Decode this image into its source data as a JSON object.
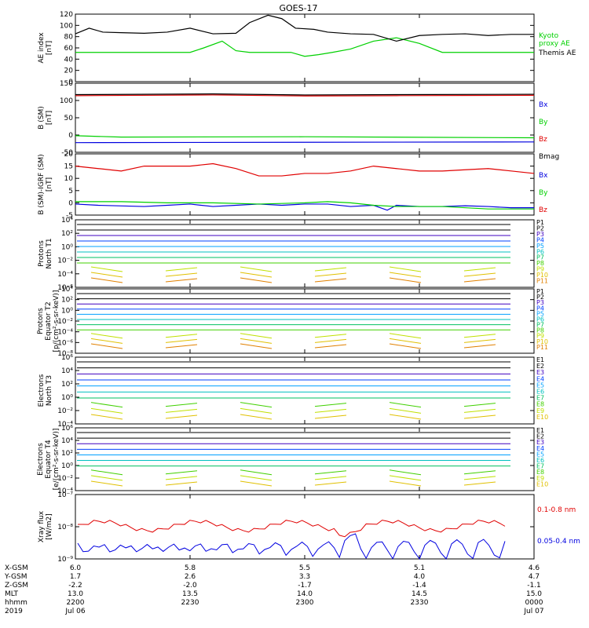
{
  "title": "GOES-17",
  "colors": {
    "black": "#000000",
    "red": "#e00000",
    "green": "#00d000",
    "blue": "#0000e0",
    "p_lines": [
      "#000000",
      "#000000",
      "#4000c0",
      "#0040ff",
      "#00a0ff",
      "#00c0c0",
      "#00c060",
      "#40d000",
      "#c0e000",
      "#e0c000",
      "#e08000",
      "#e00000"
    ]
  },
  "chart_data": [
    {
      "type": "line",
      "ylabel": "AE index\n[nT]",
      "yticks": [
        "0",
        "20",
        "40",
        "60",
        "80",
        "100",
        "120"
      ],
      "ylim": [
        0,
        120
      ],
      "series": [
        {
          "name": "Kyoto\nproxy AE",
          "color": "green",
          "x": [
            0,
            0.05,
            0.1,
            0.15,
            0.2,
            0.25,
            0.28,
            0.32,
            0.35,
            0.38,
            0.42,
            0.47,
            0.5,
            0.53,
            0.56,
            0.6,
            0.65,
            0.7,
            0.75,
            0.8,
            0.85,
            0.9,
            0.95,
            1.0
          ],
          "values": [
            52,
            52,
            52,
            52,
            52,
            52,
            60,
            72,
            55,
            52,
            52,
            52,
            45,
            48,
            52,
            58,
            72,
            78,
            68,
            52,
            52,
            52,
            52,
            52
          ]
        },
        {
          "name": "Themis AE",
          "color": "black",
          "x": [
            0,
            0.03,
            0.06,
            0.1,
            0.15,
            0.2,
            0.25,
            0.3,
            0.35,
            0.38,
            0.42,
            0.45,
            0.48,
            0.52,
            0.55,
            0.6,
            0.65,
            0.7,
            0.75,
            0.8,
            0.85,
            0.9,
            0.95,
            1.0
          ],
          "values": [
            85,
            95,
            88,
            87,
            86,
            88,
            95,
            85,
            86,
            105,
            118,
            112,
            95,
            93,
            88,
            85,
            84,
            72,
            82,
            84,
            85,
            82,
            84,
            84
          ]
        }
      ]
    },
    {
      "type": "line",
      "ylabel": "B (SM)\n[nT]",
      "yticks": [
        "-50",
        "0",
        "50",
        "100",
        "150"
      ],
      "ylim": [
        -50,
        150
      ],
      "series": [
        {
          "name": "Bx",
          "color": "blue",
          "x": [
            0,
            1
          ],
          "values": [
            -22,
            -20
          ]
        },
        {
          "name": "By",
          "color": "green",
          "x": [
            0,
            0.1,
            0.5,
            1
          ],
          "values": [
            -2,
            -6,
            -5,
            -8
          ]
        },
        {
          "name": "Bz",
          "color": "red",
          "x": [
            0,
            0.3,
            0.5,
            0.7,
            1
          ],
          "values": [
            114,
            116,
            113,
            114,
            115
          ]
        },
        {
          "name": "Bmag",
          "color": "black",
          "x": [
            0,
            0.3,
            0.5,
            0.7,
            1
          ],
          "values": [
            117,
            119,
            116,
            117,
            118
          ]
        }
      ]
    },
    {
      "type": "line",
      "ylabel": "B (SM)-IGRF (SM)\n[nT]",
      "yticks": [
        "-5",
        "0",
        "5",
        "10",
        "15",
        "20"
      ],
      "ylim": [
        -5,
        20
      ],
      "series": [
        {
          "name": "Bx",
          "color": "blue",
          "x": [
            0,
            0.05,
            0.15,
            0.2,
            0.25,
            0.3,
            0.35,
            0.4,
            0.45,
            0.5,
            0.55,
            0.6,
            0.65,
            0.68,
            0.7,
            0.75,
            0.8,
            0.85,
            0.9,
            0.95,
            1.0
          ],
          "values": [
            -0.5,
            -1,
            -1.5,
            -1,
            -0.5,
            -1.5,
            -1,
            -0.5,
            -1,
            -0.5,
            -0.5,
            -1.5,
            -1,
            -3,
            -1,
            -1.5,
            -1.5,
            -1.2,
            -1.5,
            -2,
            -2
          ]
        },
        {
          "name": "By",
          "color": "green",
          "x": [
            0,
            0.1,
            0.2,
            0.3,
            0.4,
            0.5,
            0.55,
            0.6,
            0.65,
            0.7,
            0.8,
            0.9,
            1.0
          ],
          "values": [
            0.5,
            0.5,
            0,
            0,
            -0.5,
            0,
            0.5,
            0,
            -1,
            -1.5,
            -1.5,
            -2.5,
            -2.5
          ]
        },
        {
          "name": "Bz",
          "color": "red",
          "x": [
            0,
            0.05,
            0.1,
            0.15,
            0.2,
            0.25,
            0.3,
            0.35,
            0.4,
            0.45,
            0.5,
            0.55,
            0.6,
            0.65,
            0.7,
            0.75,
            0.8,
            0.85,
            0.9,
            0.95,
            1.0
          ],
          "values": [
            15,
            14,
            13,
            15,
            15,
            15,
            16,
            14,
            11,
            11,
            12,
            12,
            13,
            15,
            14,
            13,
            13,
            13.5,
            14,
            13,
            12
          ]
        }
      ]
    }
  ],
  "protons_n": {
    "ylabel": "Protons\nNorth T1",
    "yticks": [
      "10⁻⁶",
      "10⁻⁴",
      "10⁻²",
      "10⁰",
      "10²",
      "10⁴"
    ],
    "labels": [
      "P1",
      "P2",
      "P3",
      "P4",
      "P5",
      "P6",
      "P7",
      "P8",
      "P9",
      "P10",
      "P11"
    ],
    "levels": [
      3.2,
      2.0,
      1.2,
      0.3,
      -0.5,
      -1.2,
      -1.9,
      -3.3,
      -4.0,
      -4.3,
      -4.8
    ]
  },
  "protons_e": {
    "ylabel": "Protons\nEquator T2\n[p/(cm²-s-sr-keV)]",
    "yticks": [
      "10⁻⁸",
      "10⁻⁶",
      "10⁻⁴",
      "10⁻²",
      "10⁰",
      "10²",
      "10⁴"
    ],
    "labels": [
      "P1",
      "P2",
      "P3",
      "P4",
      "P5",
      "P6",
      "P7",
      "P8",
      "P9",
      "P10",
      "P11"
    ],
    "levels": [
      3.0,
      2.0,
      1.2,
      0.2,
      -0.6,
      -1.4,
      -2.2,
      -3.1,
      -4.2,
      -5.0,
      -5.8
    ]
  },
  "electrons_n": {
    "ylabel": "Electrons\nNorth T3",
    "yticks": [
      "10⁻⁴",
      "10⁻²",
      "10⁰",
      "10²",
      "10⁴",
      "10⁶"
    ],
    "labels": [
      "E1",
      "E2",
      "E3",
      "E4",
      "E5",
      "E6",
      "E7",
      "E8",
      "E9",
      "E10"
    ],
    "levels": [
      3.8,
      3.2,
      2.5,
      1.8,
      1.2,
      0.4,
      -0.5,
      -1.4,
      -2.8,
      -3.5
    ]
  },
  "electrons_e": {
    "ylabel": "Electrons\nEquator T4\n[e/(cm²-s-sr-keV)]",
    "yticks": [
      "10⁻⁴",
      "10⁻²",
      "10⁰",
      "10²",
      "10⁴",
      "10⁶"
    ],
    "labels": [
      "E1",
      "E2",
      "E3",
      "E4",
      "E5",
      "E6",
      "E7",
      "E8",
      "E9",
      "E10"
    ],
    "levels": [
      3.8,
      3.2,
      2.5,
      1.8,
      1.2,
      0.4,
      -0.5,
      -1.4,
      -2.8,
      -3.5
    ]
  },
  "xray": {
    "ylabel": "Xray flux\n[W/m2]",
    "yticks": [
      "10⁻⁹",
      "10⁻⁸",
      "10⁻⁷"
    ],
    "labels": [
      "0.1-0.8 nm",
      "0.05-0.4 nm"
    ]
  },
  "axis_table": {
    "row_labels": [
      "X-GSM",
      "Y-GSM",
      "Z-GSM",
      "MLT",
      "hhmm",
      "2019"
    ],
    "columns": [
      [
        "6.0",
        "1.7",
        "-2.2",
        "13.0",
        "2200",
        "Jul 06"
      ],
      [
        "5.8",
        "2.6",
        "-2.0",
        "13.5",
        "2230",
        ""
      ],
      [
        "5.5",
        "3.3",
        "-1.7",
        "14.0",
        "2300",
        ""
      ],
      [
        "5.1",
        "4.0",
        "-1.4",
        "14.5",
        "2330",
        ""
      ],
      [
        "4.6",
        "4.7",
        "-1.1",
        "15.0",
        "0000",
        "Jul 07"
      ]
    ]
  }
}
